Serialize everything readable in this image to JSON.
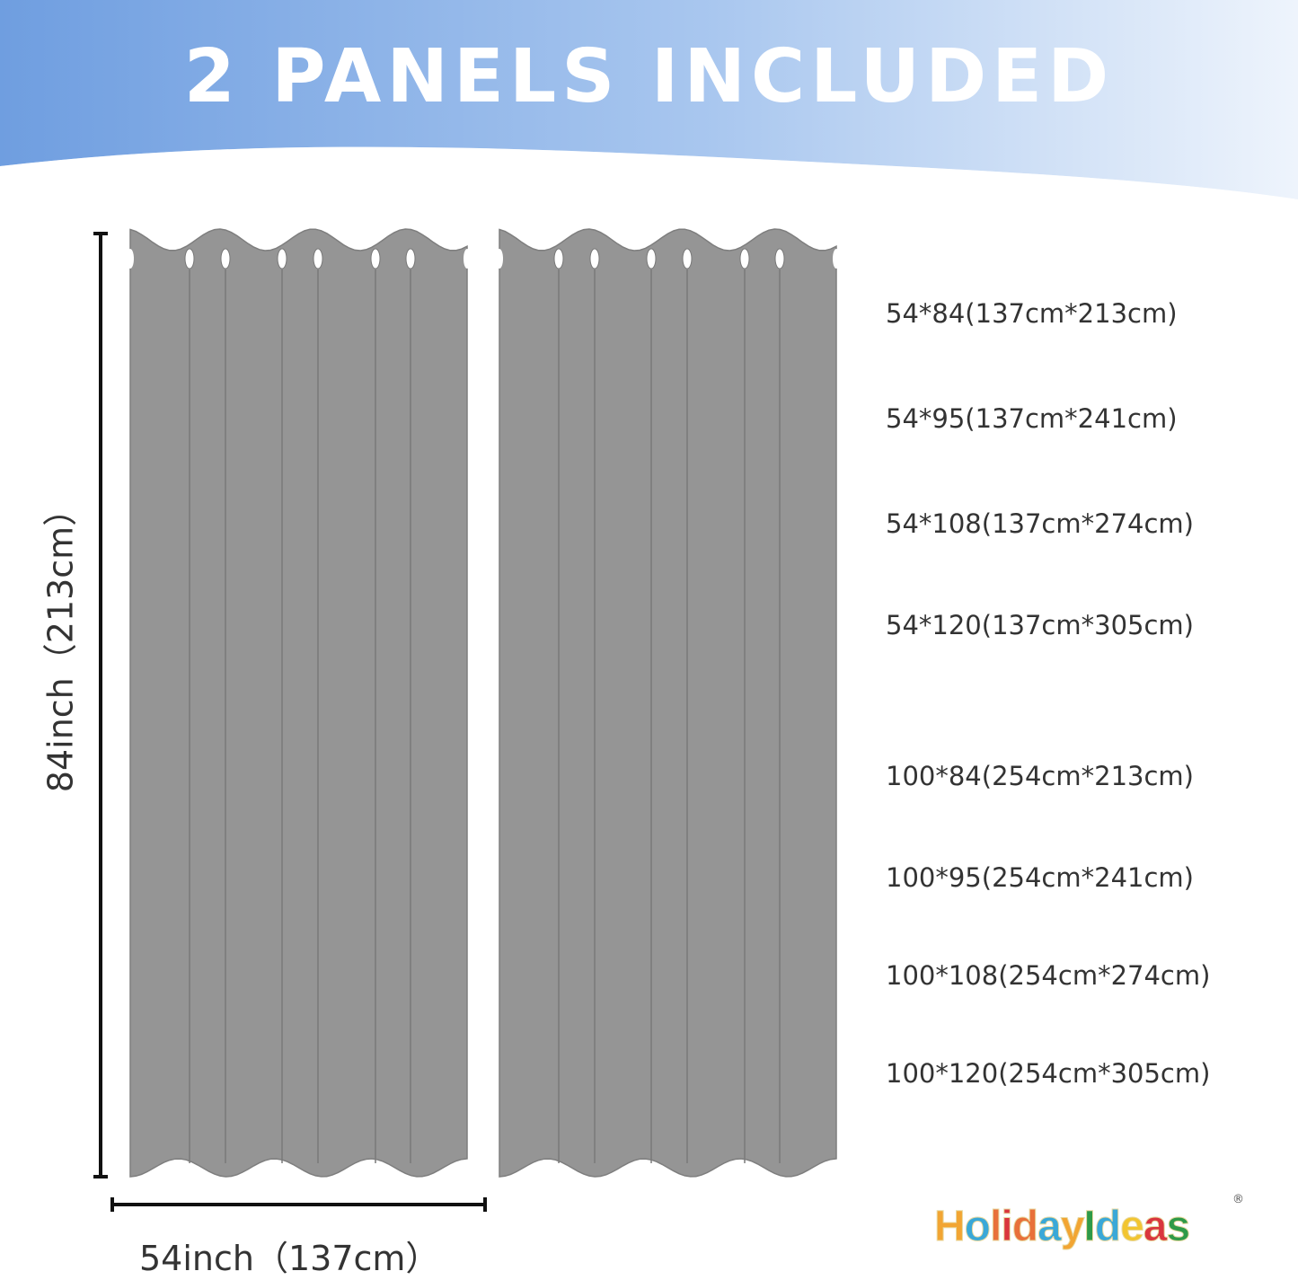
{
  "header": {
    "title": "2 PANELS INCLUDED",
    "gradient_start": "#6f9ee0",
    "gradient_end": "#eef4fc"
  },
  "curtain": {
    "color": "#959595",
    "outline": "#7e7e7e",
    "panel_count": 2
  },
  "dimensions": {
    "height_label": "84inch（213cm）",
    "width_label": "54inch（137cm）"
  },
  "sizes": [
    "54*84(137cm*213cm)",
    "54*95(137cm*241cm)",
    "54*108(137cm*274cm)",
    "54*120(137cm*305cm)",
    "100*84(254cm*213cm)",
    "100*95(254cm*241cm)",
    "100*108(254cm*274cm)",
    "100*120(254cm*305cm)"
  ],
  "logo": {
    "text": "HolidayIdeas",
    "registered": "®"
  }
}
